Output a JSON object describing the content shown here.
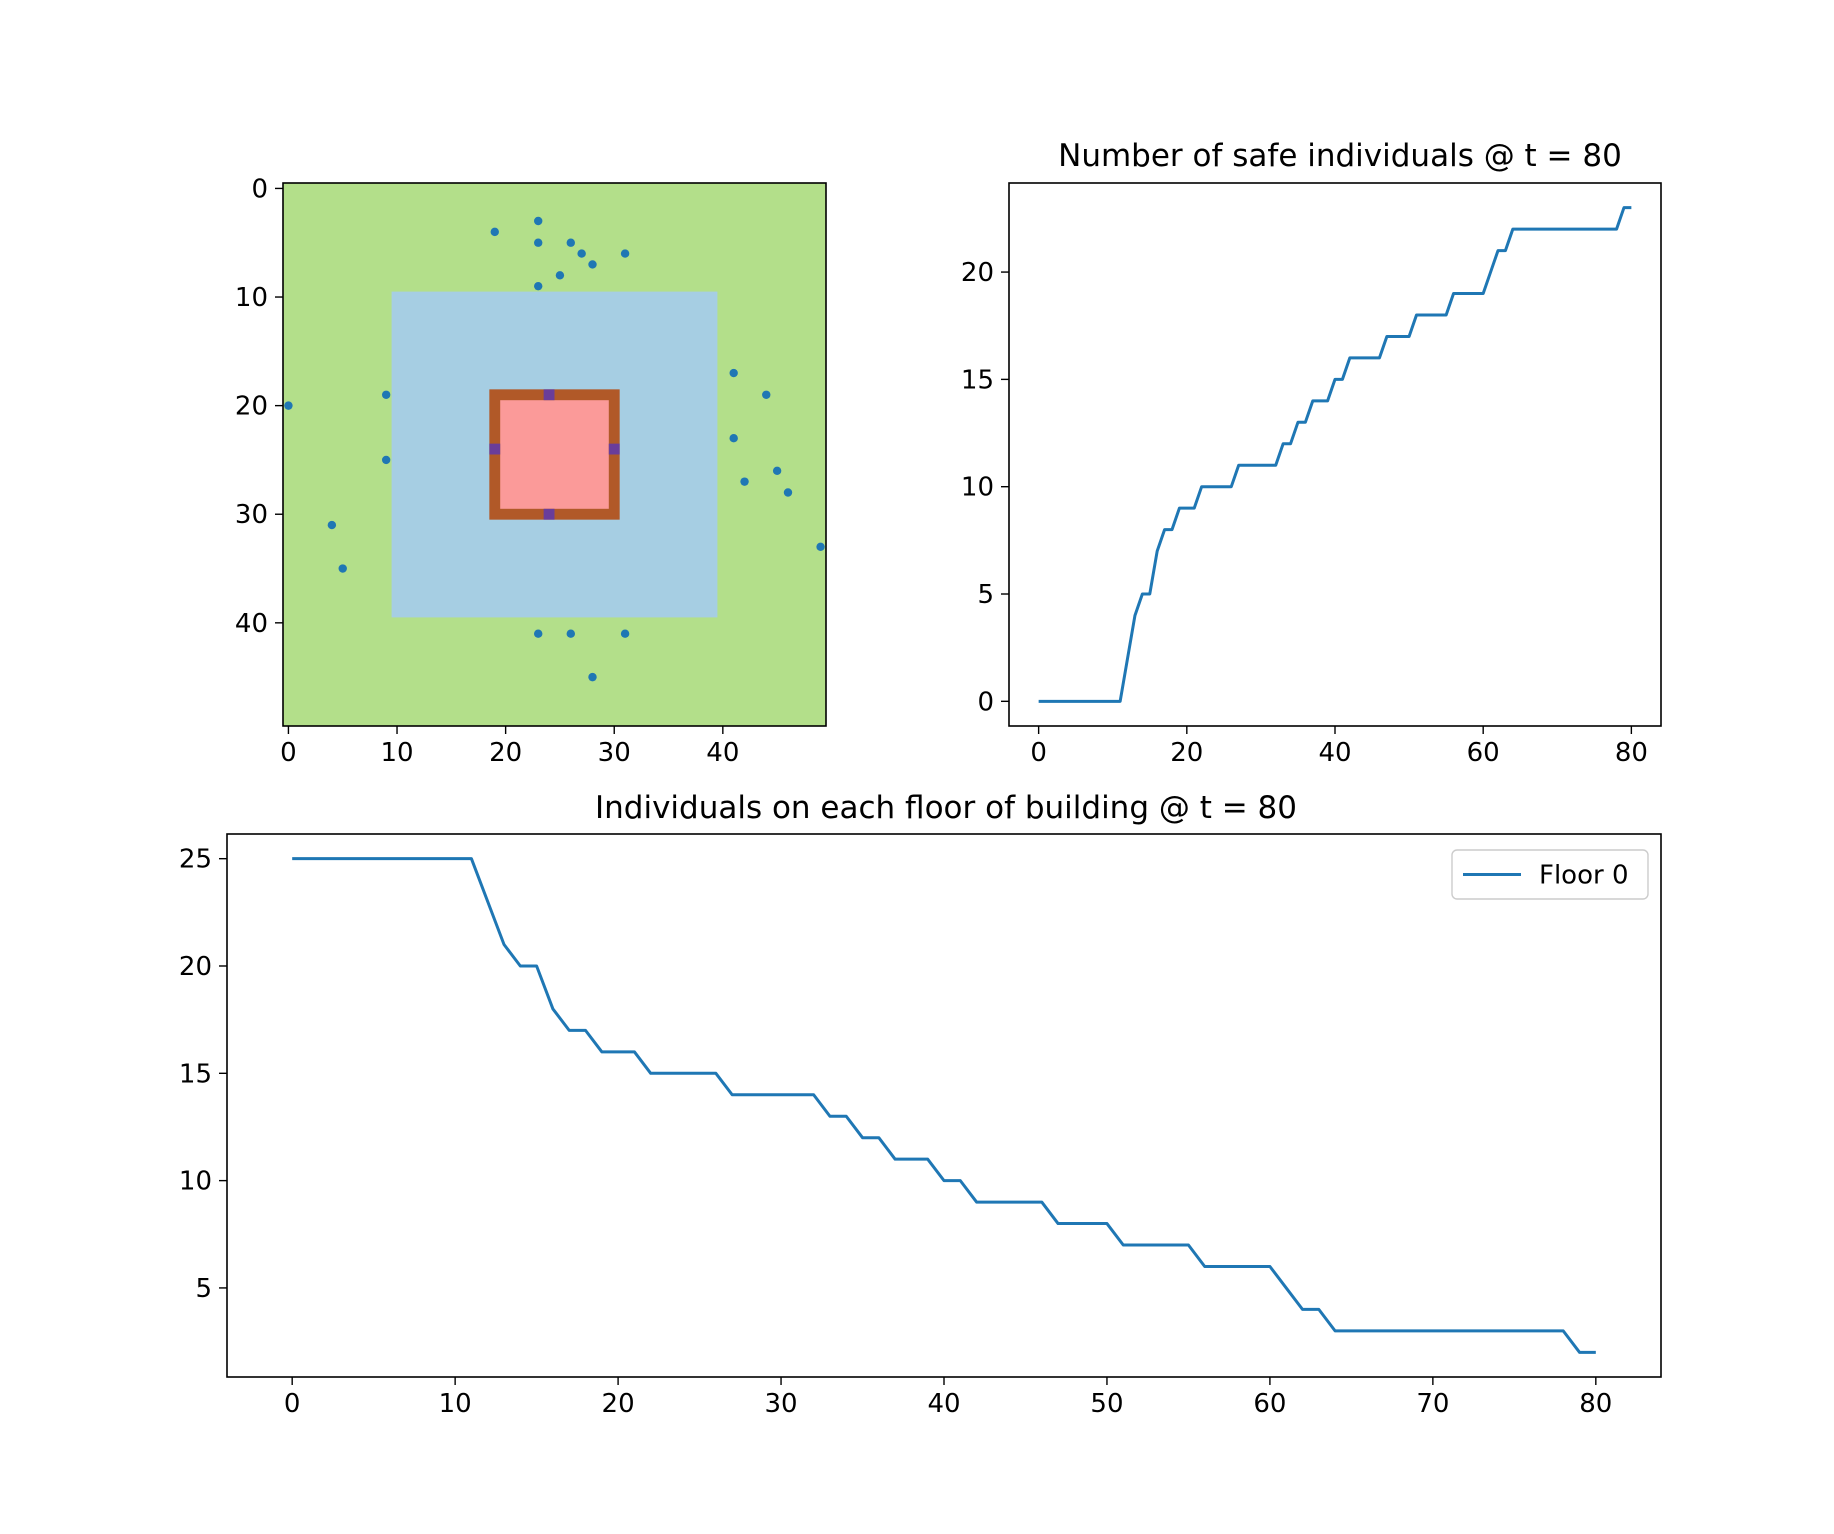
{
  "chart_data": [
    {
      "type": "heatmap",
      "title": "",
      "xlabel": "",
      "ylabel": "",
      "grid_size": 50,
      "xlim": [
        -0.5,
        49.5
      ],
      "ylim": [
        49.5,
        -0.5
      ],
      "y_inverted": true,
      "x_ticks": [
        0,
        10,
        20,
        30,
        40
      ],
      "y_ticks": [
        0,
        10,
        20,
        30,
        40
      ],
      "regions": [
        {
          "name": "outdoor",
          "color": "#b3df8a",
          "x": [
            -0.5,
            49.5
          ],
          "y": [
            -0.5,
            49.5
          ]
        },
        {
          "name": "zone",
          "color": "#a6cee3",
          "x": [
            9.5,
            39.5
          ],
          "y": [
            9.5,
            39.5
          ]
        },
        {
          "name": "wall",
          "color": "#b15928",
          "x": [
            18.5,
            30.5
          ],
          "y": [
            18.5,
            30.5
          ]
        },
        {
          "name": "floor",
          "color": "#fb9a99",
          "x": [
            19.5,
            29.5
          ],
          "y": [
            19.5,
            29.5
          ]
        }
      ],
      "doors": {
        "color": "#6a3d9a",
        "cells": [
          [
            24,
            19
          ],
          [
            24,
            30
          ],
          [
            19,
            24
          ],
          [
            30,
            24
          ]
        ]
      },
      "points_color": "#1f77b4",
      "points": [
        [
          19,
          4
        ],
        [
          23,
          3
        ],
        [
          23,
          5
        ],
        [
          26,
          5
        ],
        [
          27,
          6
        ],
        [
          28,
          7
        ],
        [
          31,
          6
        ],
        [
          25,
          8
        ],
        [
          23,
          9
        ],
        [
          0,
          20
        ],
        [
          9,
          19
        ],
        [
          9,
          25
        ],
        [
          4,
          31
        ],
        [
          5,
          35
        ],
        [
          41,
          17
        ],
        [
          44,
          19
        ],
        [
          41,
          23
        ],
        [
          42,
          27
        ],
        [
          45,
          26
        ],
        [
          46,
          28
        ],
        [
          49,
          33
        ],
        [
          23,
          41
        ],
        [
          26,
          41
        ],
        [
          31,
          41
        ],
        [
          28,
          45
        ]
      ]
    },
    {
      "type": "line",
      "title": "Number of safe individuals @ t = 80",
      "xlabel": "",
      "ylabel": "",
      "xlim": [
        -4,
        84
      ],
      "ylim": [
        -1.15,
        24.15
      ],
      "x_ticks": [
        0,
        20,
        40,
        60,
        80
      ],
      "y_ticks": [
        0,
        5,
        10,
        15,
        20
      ],
      "series": [
        {
          "color": "#1f77b4",
          "x": [
            0,
            1,
            2,
            3,
            4,
            5,
            6,
            7,
            8,
            9,
            10,
            11,
            12,
            13,
            14,
            15,
            16,
            17,
            18,
            19,
            20,
            21,
            22,
            23,
            24,
            25,
            26,
            27,
            28,
            29,
            30,
            31,
            32,
            33,
            34,
            35,
            36,
            37,
            38,
            39,
            40,
            41,
            42,
            43,
            44,
            45,
            46,
            47,
            48,
            49,
            50,
            51,
            52,
            53,
            54,
            55,
            56,
            57,
            58,
            59,
            60,
            61,
            62,
            63,
            64,
            65,
            66,
            67,
            68,
            69,
            70,
            71,
            72,
            73,
            74,
            75,
            76,
            77,
            78,
            79,
            80
          ],
          "y": [
            0,
            0,
            0,
            0,
            0,
            0,
            0,
            0,
            0,
            0,
            0,
            0,
            2,
            4,
            5,
            5,
            7,
            8,
            8,
            9,
            9,
            9,
            10,
            10,
            10,
            10,
            10,
            11,
            11,
            11,
            11,
            11,
            11,
            12,
            12,
            13,
            13,
            14,
            14,
            14,
            15,
            15,
            16,
            16,
            16,
            16,
            16,
            17,
            17,
            17,
            17,
            18,
            18,
            18,
            18,
            18,
            19,
            19,
            19,
            19,
            19,
            20,
            21,
            21,
            22,
            22,
            22,
            22,
            22,
            22,
            22,
            22,
            22,
            22,
            22,
            22,
            22,
            22,
            22,
            23,
            23
          ]
        }
      ]
    },
    {
      "type": "line",
      "title": "Individuals on each floor of building @ t = 80",
      "xlabel": "",
      "ylabel": "",
      "xlim": [
        -4,
        84
      ],
      "ylim": [
        0.85,
        26.15
      ],
      "x_ticks": [
        0,
        10,
        20,
        30,
        40,
        50,
        60,
        70,
        80
      ],
      "y_ticks": [
        5,
        10,
        15,
        20,
        25
      ],
      "legend": "top-right",
      "series": [
        {
          "name": "Floor 0",
          "color": "#1f77b4",
          "x": [
            0,
            1,
            2,
            3,
            4,
            5,
            6,
            7,
            8,
            9,
            10,
            11,
            12,
            13,
            14,
            15,
            16,
            17,
            18,
            19,
            20,
            21,
            22,
            23,
            24,
            25,
            26,
            27,
            28,
            29,
            30,
            31,
            32,
            33,
            34,
            35,
            36,
            37,
            38,
            39,
            40,
            41,
            42,
            43,
            44,
            45,
            46,
            47,
            48,
            49,
            50,
            51,
            52,
            53,
            54,
            55,
            56,
            57,
            58,
            59,
            60,
            61,
            62,
            63,
            64,
            65,
            66,
            67,
            68,
            69,
            70,
            71,
            72,
            73,
            74,
            75,
            76,
            77,
            78,
            79,
            80
          ],
          "y": [
            25,
            25,
            25,
            25,
            25,
            25,
            25,
            25,
            25,
            25,
            25,
            25,
            23,
            21,
            20,
            20,
            18,
            17,
            17,
            16,
            16,
            16,
            15,
            15,
            15,
            15,
            15,
            14,
            14,
            14,
            14,
            14,
            14,
            13,
            13,
            12,
            12,
            11,
            11,
            11,
            10,
            10,
            9,
            9,
            9,
            9,
            9,
            8,
            8,
            8,
            8,
            7,
            7,
            7,
            7,
            7,
            6,
            6,
            6,
            6,
            6,
            5,
            4,
            4,
            3,
            3,
            3,
            3,
            3,
            3,
            3,
            3,
            3,
            3,
            3,
            3,
            3,
            3,
            3,
            2,
            2
          ]
        }
      ]
    }
  ]
}
